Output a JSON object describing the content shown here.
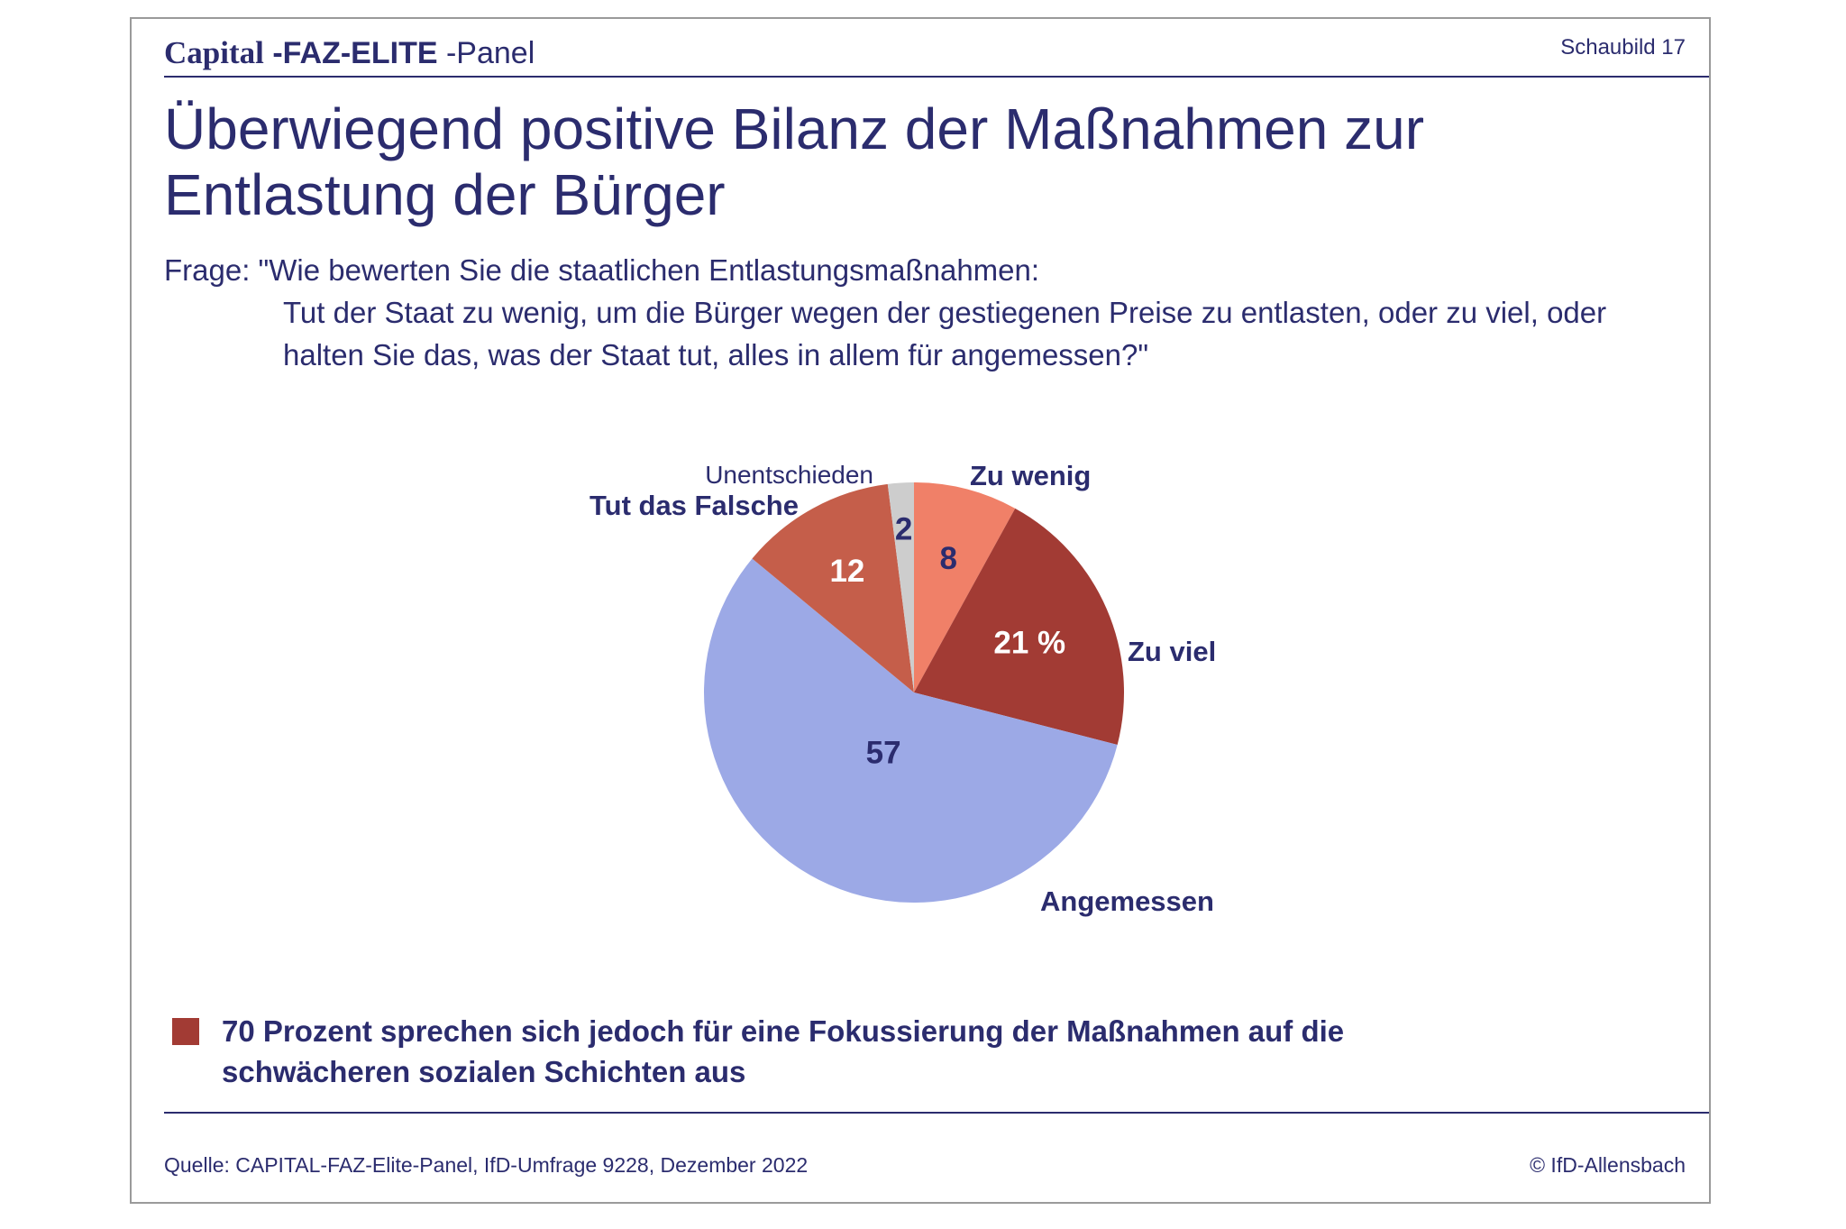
{
  "header": {
    "brand_capital": "Capital",
    "brand_faz": "-FAZ-ELITE",
    "brand_panel": "-Panel",
    "slide_number": "Schaubild 17"
  },
  "title": "Überwiegend positive Bilanz der Maßnahmen zur Entlastung der Bürger",
  "question": {
    "line1": "Frage: \"Wie bewerten Sie die staatlichen Entlastungsmaßnahmen:",
    "line2": "Tut der Staat zu wenig, um die Bürger wegen der gestiegenen Preise zu entlasten, oder zu viel, oder halten Sie das, was der Staat tut, alles in allem für angemessen?\""
  },
  "chart_data": {
    "type": "pie",
    "unit": "%",
    "start_angle_deg": 0,
    "direction": "clockwise",
    "slices": [
      {
        "label": "Zu wenig",
        "value": 8,
        "value_label": "8",
        "color": "#f08068",
        "value_color": "#2b2c6e"
      },
      {
        "label": "Zu viel",
        "value": 21,
        "value_label": "21 %",
        "color": "#a23b34",
        "value_color": "#ffffff"
      },
      {
        "label": "Angemessen",
        "value": 57,
        "value_label": "57",
        "color": "#9ca9e6",
        "value_color": "#2b2c6e"
      },
      {
        "label": "Tut das Falsche",
        "value": 12,
        "value_label": "12",
        "color": "#c55e4a",
        "value_color": "#ffffff"
      },
      {
        "label": "Unentschieden",
        "value": 2,
        "value_label": "2",
        "color": "#cdcdcd",
        "value_color": "#2b2c6e"
      }
    ]
  },
  "note": {
    "text": "70 Prozent sprechen sich jedoch für eine Fokussierung der Maßnahmen auf die schwächeren sozialen Schichten aus",
    "bullet_color": "#a23b34"
  },
  "footer": {
    "source": "Quelle: CAPITAL-FAZ-Elite-Panel, IfD-Umfrage 9228, Dezember 2022",
    "copyright": "© IfD-Allensbach"
  }
}
